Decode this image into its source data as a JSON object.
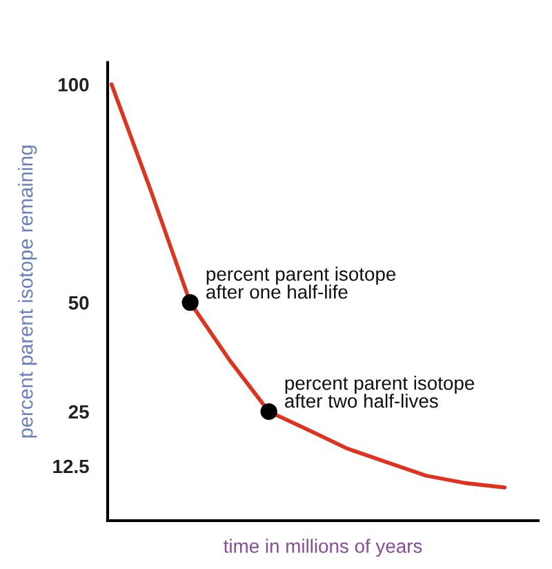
{
  "chart_data": {
    "type": "line",
    "xlabel": "time in millions of years",
    "ylabel": "percent parent isotope remaining",
    "categories": [
      null,
      null,
      null,
      null,
      null,
      null,
      null,
      null,
      null,
      null,
      null
    ],
    "ylim": [
      0,
      105
    ],
    "yticks": [
      12.5,
      25,
      50,
      100
    ],
    "series": [
      {
        "color": "#e0321e",
        "values": [
          100,
          75.6,
          50,
          36.8,
          25,
          20.8,
          16.5,
          13.4,
          10.3,
          8.6,
          7.6
        ]
      },
      {
        "type": "scatter",
        "color": "#000000",
        "values": [
          null,
          null,
          50,
          null,
          25,
          null,
          null,
          null,
          null,
          null,
          null
        ],
        "marker": "circle"
      }
    ],
    "annotations": [
      "percent parent isotope\nafter one half-life",
      "percent parent isotope\nafter two half-lives"
    ]
  }
}
